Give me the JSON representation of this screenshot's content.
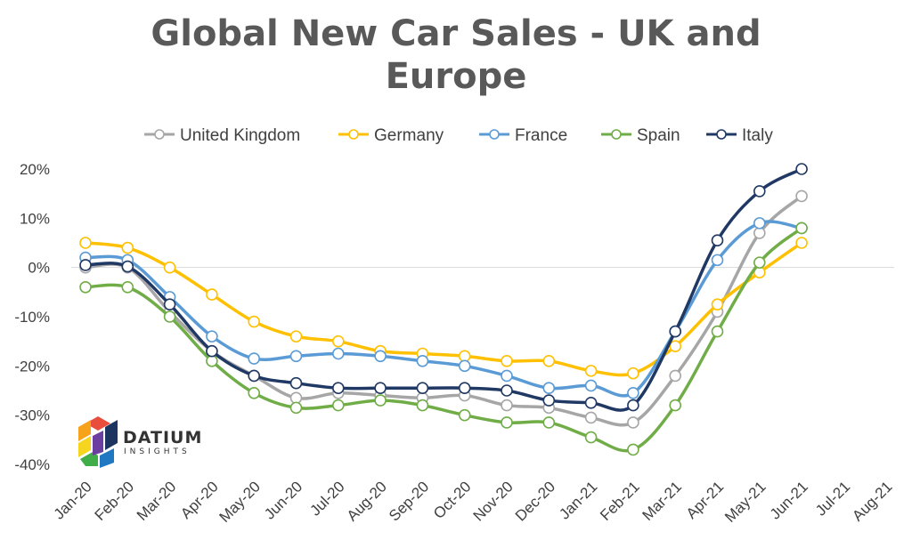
{
  "chart_data": {
    "type": "line",
    "title_line1": "Global New Car Sales - UK and",
    "title_line2": "Europe",
    "categories": [
      "Jan-20",
      "Feb-20",
      "Mar-20",
      "Apr-20",
      "May-20",
      "Jun-20",
      "Jul-20",
      "Aug-20",
      "Sep-20",
      "Oct-20",
      "Nov-20",
      "Dec-20",
      "Jan-21",
      "Feb-21",
      "Mar-21",
      "Apr-21",
      "May-21",
      "Jun-21",
      "Jul-21",
      "Aug-21"
    ],
    "y_ticks": [
      "20%",
      "10%",
      "0%",
      "-10%",
      "-20%",
      "-30%",
      "-40%"
    ],
    "ylim": [
      -40,
      20
    ],
    "y_unit": "%",
    "legend_position": "top",
    "grid": false,
    "series": [
      {
        "name": "United Kingdom",
        "color": "#a6a6a6",
        "values": [
          0,
          0,
          -9,
          -17,
          -22,
          -26.5,
          -25.5,
          -26,
          -26.5,
          -26,
          -28,
          -28.5,
          -30.5,
          -31.5,
          -22,
          -9,
          7,
          14.5,
          null,
          null
        ]
      },
      {
        "name": "Germany",
        "color": "#ffc000",
        "values": [
          5,
          4,
          0,
          -5.5,
          -11,
          -14,
          -15,
          -17,
          -17.5,
          -18,
          -19,
          -19,
          -21,
          -21.5,
          -16,
          -7.5,
          -1,
          5,
          null,
          null
        ]
      },
      {
        "name": "France",
        "color": "#5b9bd5",
        "values": [
          2,
          1.5,
          -6,
          -14,
          -18.5,
          -18,
          -17.5,
          -18,
          -19,
          -20,
          -22,
          -24.5,
          -24,
          -25.5,
          -13,
          1.5,
          9,
          8,
          null,
          null
        ]
      },
      {
        "name": "Spain",
        "color": "#70ad47",
        "values": [
          -4,
          -4,
          -10,
          -19,
          -25.5,
          -28.5,
          -28,
          -27,
          -28,
          -30,
          -31.5,
          -31.5,
          -34.5,
          -37,
          -28,
          -13,
          1,
          8,
          null,
          null
        ]
      },
      {
        "name": "Italy",
        "color": "#203864",
        "values": [
          0.5,
          0.2,
          -7.5,
          -17,
          -22,
          -23.5,
          -24.5,
          -24.5,
          -24.5,
          -24.5,
          -25,
          -27,
          -27.5,
          -28,
          -13,
          5.5,
          15.5,
          20,
          null,
          null
        ]
      }
    ]
  },
  "logo": {
    "word": "DATIUM",
    "sub": "INSIGHTS"
  }
}
